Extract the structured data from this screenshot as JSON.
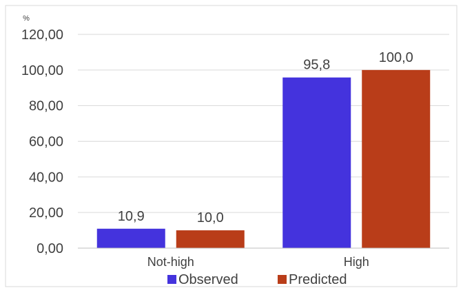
{
  "chart_data": {
    "type": "bar",
    "unit_label": "%",
    "categories": [
      "Not-high",
      "High"
    ],
    "series": [
      {
        "name": "Observed",
        "values": [
          10.9,
          95.8
        ],
        "labels": [
          "10,9",
          "95,8"
        ],
        "color": "#4433dd"
      },
      {
        "name": "Predicted",
        "values": [
          10.0,
          100.0
        ],
        "labels": [
          "10,0",
          "100,0"
        ],
        "color": "#b93d19"
      }
    ],
    "ylim": [
      0,
      120
    ],
    "yticks": [
      {
        "value": 0,
        "label": "0,00"
      },
      {
        "value": 20,
        "label": "20,00"
      },
      {
        "value": 40,
        "label": "40,00"
      },
      {
        "value": 60,
        "label": "60,00"
      },
      {
        "value": 80,
        "label": "80,00"
      },
      {
        "value": 100,
        "label": "100,00"
      },
      {
        "value": 120,
        "label": "120,00"
      }
    ],
    "grid": true,
    "legend_position": "bottom"
  },
  "colors": {
    "grid": "#d9d9d9",
    "axis": "#bfbfbf",
    "frame": "#d9d9d9"
  }
}
